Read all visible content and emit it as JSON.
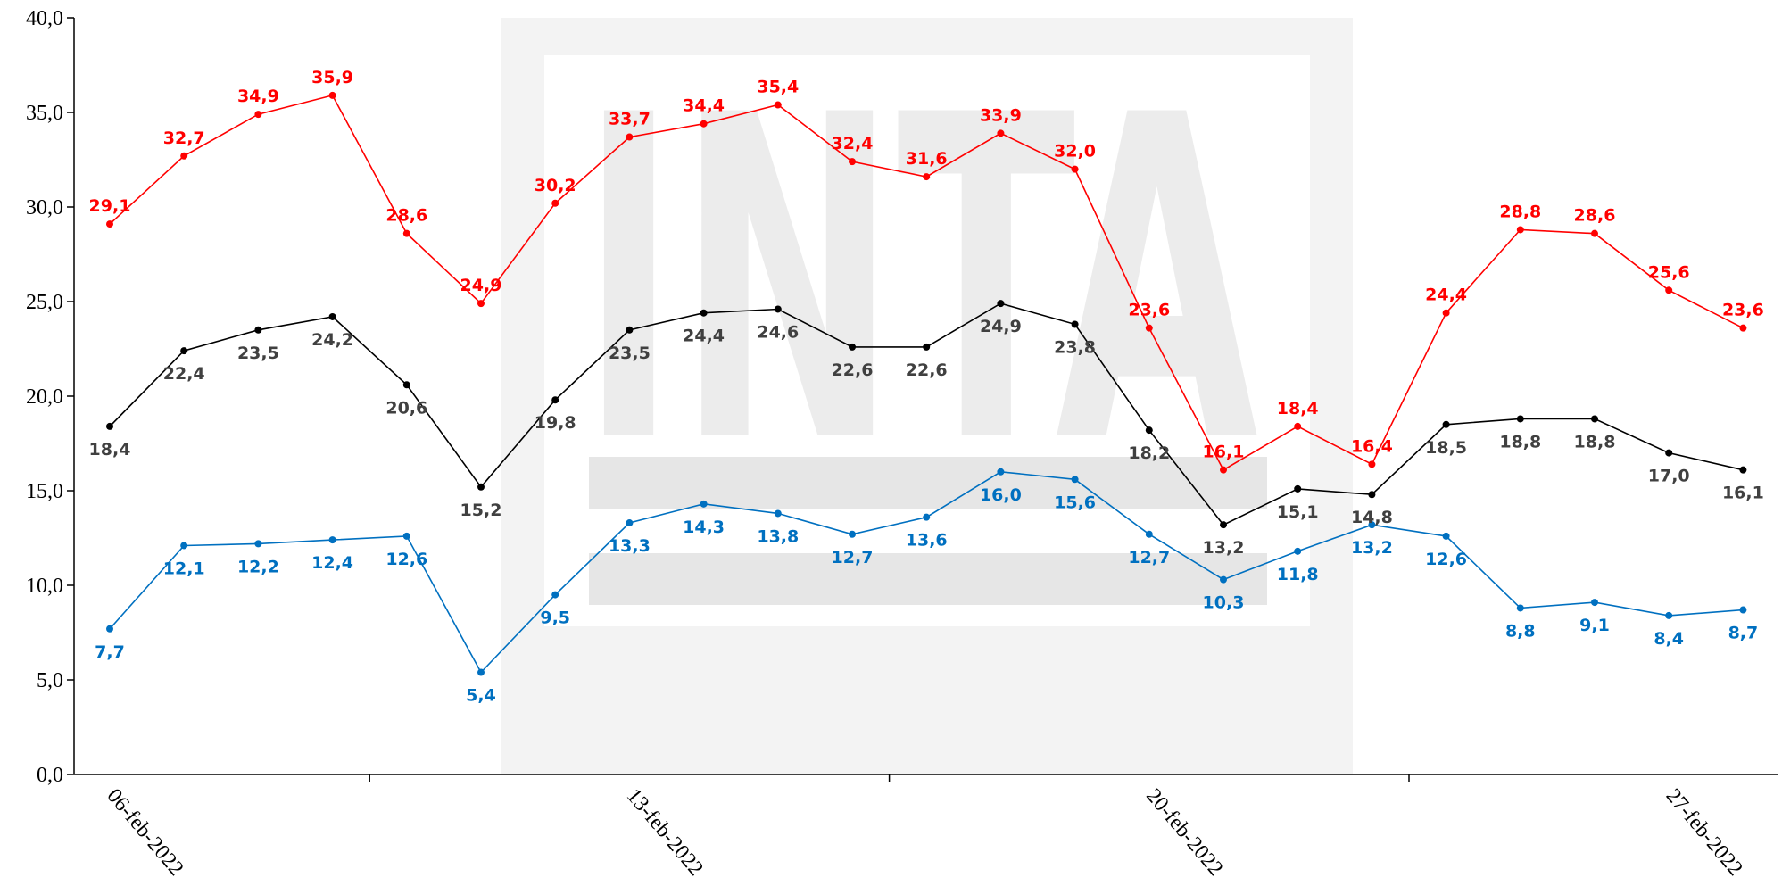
{
  "chart_data": {
    "type": "line",
    "x": [
      "06-feb-2022",
      "07-feb-2022",
      "08-feb-2022",
      "09-feb-2022",
      "10-feb-2022",
      "11-feb-2022",
      "12-feb-2022",
      "13-feb-2022",
      "14-feb-2022",
      "15-feb-2022",
      "16-feb-2022",
      "17-feb-2022",
      "18-feb-2022",
      "19-feb-2022",
      "20-feb-2022",
      "21-feb-2022",
      "22-feb-2022",
      "23-feb-2022",
      "24-feb-2022",
      "25-feb-2022",
      "26-feb-2022",
      "27-feb-2022",
      "28-feb-2022"
    ],
    "x_tick_labels": [
      "06-feb-2022",
      "13-feb-2022",
      "20-feb-2022",
      "27-feb-2022"
    ],
    "y_tick_labels": [
      "0,0",
      "5,0",
      "10,0",
      "15,0",
      "20,0",
      "25,0",
      "30,0",
      "35,0",
      "40,0"
    ],
    "ylim": [
      0,
      40
    ],
    "grid": false,
    "series": [
      {
        "color": "#ff0000",
        "values": [
          29.1,
          32.7,
          34.9,
          35.9,
          28.6,
          24.9,
          30.2,
          33.7,
          34.4,
          35.4,
          32.4,
          31.6,
          33.9,
          32.0,
          23.6,
          16.1,
          18.4,
          16.4,
          24.4,
          28.8,
          28.6,
          25.6,
          23.6
        ],
        "labels": [
          "29,1",
          "32,7",
          "34,9",
          "35,9",
          "28,6",
          "24,9",
          "30,2",
          "33,7",
          "34,4",
          "35,4",
          "32,4",
          "31,6",
          "33,9",
          "32,0",
          "23,6",
          "16,1",
          "18,4",
          "16,4",
          "24,4",
          "28,8",
          "28,6",
          "25,6",
          "23,6"
        ]
      },
      {
        "color": "#000000",
        "label_color": "#404040",
        "values": [
          18.4,
          22.4,
          23.5,
          24.2,
          20.6,
          15.2,
          19.8,
          23.5,
          24.4,
          24.6,
          22.6,
          22.6,
          24.9,
          23.8,
          18.2,
          13.2,
          15.1,
          14.8,
          18.5,
          18.8,
          18.8,
          17.0,
          16.1
        ],
        "labels": [
          "18,4",
          "22,4",
          "23,5",
          "24,2",
          "20,6",
          "15,2",
          "19,8",
          "23,5",
          "24,4",
          "24,6",
          "22,6",
          "22,6",
          "24,9",
          "23,8",
          "18,2",
          "13,2",
          "15,1",
          "14,8",
          "18,5",
          "18,8",
          "18,8",
          "17,0",
          "16,1"
        ]
      },
      {
        "color": "#0070c0",
        "values": [
          7.7,
          12.1,
          12.2,
          12.4,
          12.6,
          5.4,
          9.5,
          13.3,
          14.3,
          13.8,
          12.7,
          13.6,
          16.0,
          15.6,
          12.7,
          10.3,
          11.8,
          13.2,
          12.6,
          8.8,
          9.1,
          8.4,
          8.7
        ],
        "labels": [
          "7,7",
          "12,1",
          "12,2",
          "12,4",
          "12,6",
          "5,4",
          "9,5",
          "13,3",
          "14,3",
          "13,8",
          "12,7",
          "13,6",
          "16,0",
          "15,6",
          "12,7",
          "10,3",
          "11,8",
          "13,2",
          "12,6",
          "8,8",
          "9,1",
          "8,4",
          "8,7"
        ]
      }
    ],
    "watermark": {
      "text": "INTA",
      "color": "#e6e6e6"
    }
  }
}
